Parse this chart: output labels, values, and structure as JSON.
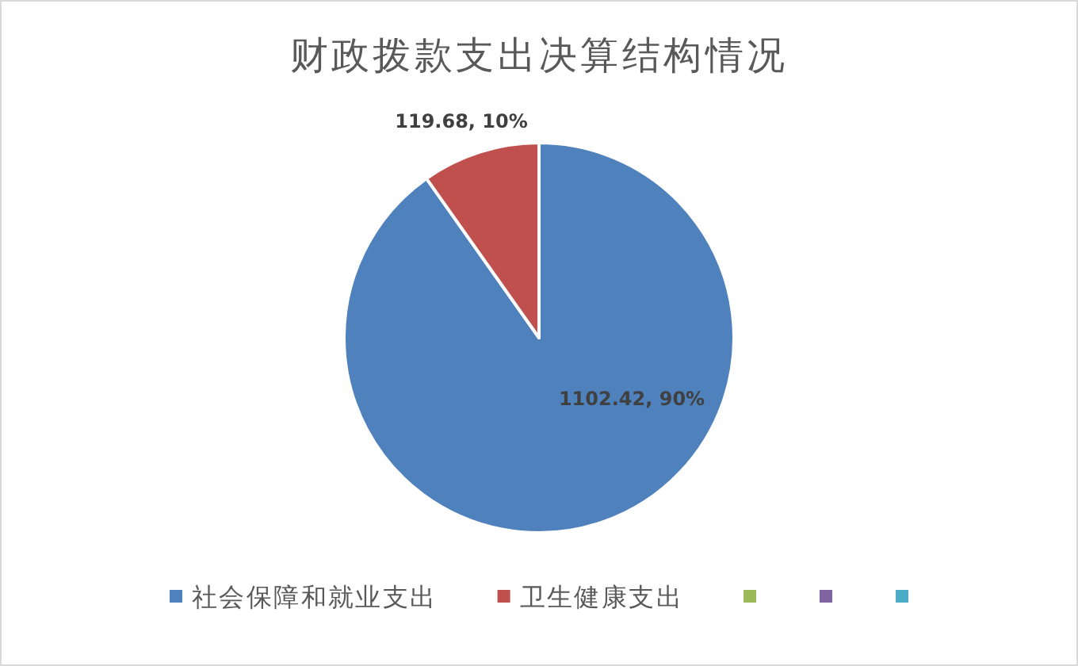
{
  "chart_data": {
    "type": "pie",
    "title": "财政拨款支出决算结构情况",
    "categories": [
      "社会保障和就业支出",
      "卫生健康支出",
      null,
      null,
      null
    ],
    "values": [
      1102.42,
      119.68,
      0,
      0,
      0
    ],
    "colors": [
      "#4f81bd",
      "#c0504d",
      "#9bbb59",
      "#8064a2",
      "#4bacc6"
    ],
    "value_labels": [
      "1102.42, 90%",
      "119.68, 10%",
      null,
      null,
      null
    ],
    "legend": "bottom"
  }
}
